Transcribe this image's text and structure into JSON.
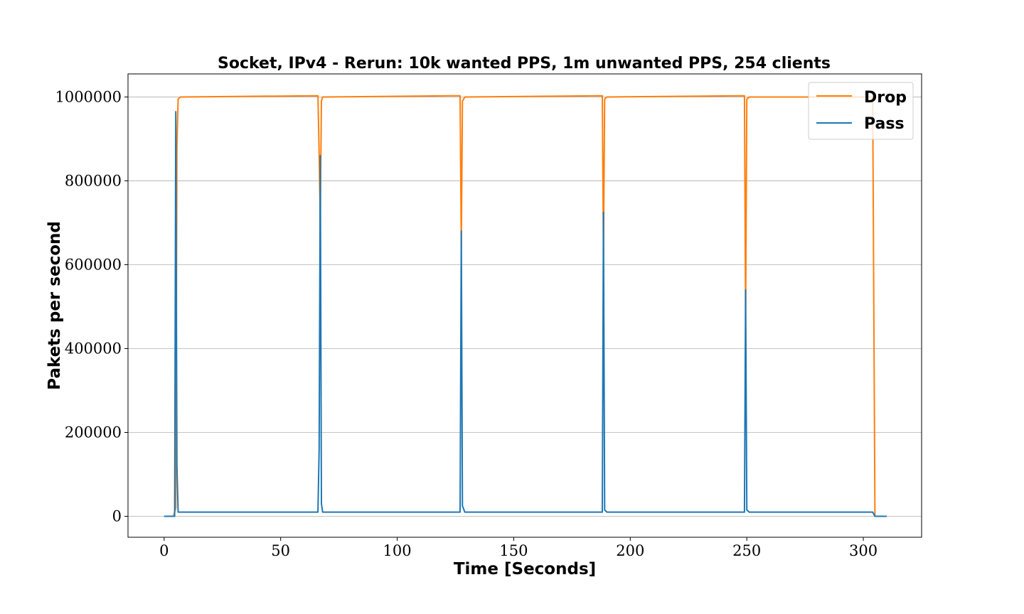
{
  "chart_data": {
    "type": "line",
    "title": "Socket, IPv4 - Rerun: 10k wanted PPS, 1m unwanted PPS, 254 clients",
    "xlabel": "Time [Seconds]",
    "ylabel": "Pakets per second",
    "xlim": [
      -15.5,
      325
    ],
    "ylim": [
      -50000,
      1055000
    ],
    "xticks": [
      0,
      50,
      100,
      150,
      200,
      250,
      300
    ],
    "yticks": [
      0,
      200000,
      400000,
      600000,
      800000,
      1000000
    ],
    "grid": "horizontal",
    "legend_position": "top-right",
    "series": [
      {
        "name": "Drop",
        "color": "#ff7f0e",
        "points": [
          [
            0,
            0
          ],
          [
            4,
            0
          ],
          [
            5,
            20000
          ],
          [
            5.5,
            880000
          ],
          [
            6,
            995000
          ],
          [
            7,
            1000000
          ],
          [
            66,
            1003000
          ],
          [
            66.5,
            865000
          ],
          [
            67,
            700000
          ],
          [
            67.5,
            990000
          ],
          [
            68,
            1000000
          ],
          [
            127,
            1003000
          ],
          [
            127.5,
            640000
          ],
          [
            128,
            990000
          ],
          [
            129,
            1000000
          ],
          [
            188,
            1003000
          ],
          [
            188.5,
            620000
          ],
          [
            189,
            995000
          ],
          [
            190,
            1000000
          ],
          [
            249,
            1003000
          ],
          [
            249.5,
            460000
          ],
          [
            250,
            995000
          ],
          [
            251,
            1000000
          ],
          [
            304,
            1000000
          ],
          [
            305,
            0
          ],
          [
            310,
            0
          ]
        ]
      },
      {
        "name": "Pass",
        "color": "#1f77b4",
        "points": [
          [
            0,
            0
          ],
          [
            4.5,
            0
          ],
          [
            5,
            965000
          ],
          [
            5.5,
            120000
          ],
          [
            6,
            10000
          ],
          [
            66,
            10000
          ],
          [
            66.5,
            160000
          ],
          [
            67,
            860000
          ],
          [
            67.5,
            30000
          ],
          [
            68,
            10000
          ],
          [
            127,
            10000
          ],
          [
            127.5,
            680000
          ],
          [
            128,
            25000
          ],
          [
            129,
            10000
          ],
          [
            188,
            10000
          ],
          [
            188.5,
            725000
          ],
          [
            189,
            15000
          ],
          [
            190,
            10000
          ],
          [
            249,
            10000
          ],
          [
            249.5,
            540000
          ],
          [
            250,
            15000
          ],
          [
            251,
            10000
          ],
          [
            304,
            10000
          ],
          [
            305,
            0
          ],
          [
            310,
            0
          ]
        ]
      }
    ]
  }
}
